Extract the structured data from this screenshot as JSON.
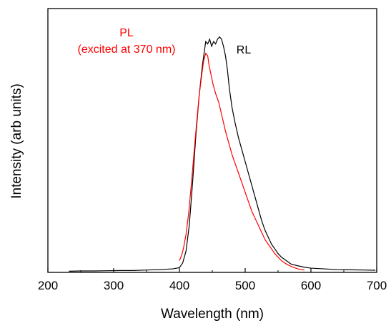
{
  "chart_data": {
    "type": "line",
    "title": "",
    "xlabel": "Wavelength (nm)",
    "ylabel": "Intensity (arb units)",
    "xlim": [
      200,
      700
    ],
    "ylim": [
      0,
      1.12
    ],
    "xticks": [
      200,
      300,
      400,
      500,
      600,
      700
    ],
    "yticks_shown": false,
    "grid": false,
    "annotations": [
      {
        "text": "PL",
        "color": "#ff0000"
      },
      {
        "text": "(excited at 370 nm)",
        "color": "#ff0000"
      },
      {
        "text": "RL",
        "color": "#000000"
      }
    ],
    "series": [
      {
        "name": "RL",
        "color": "#000000",
        "x": [
          232,
          250,
          270,
          290,
          310,
          330,
          350,
          370,
          390,
          400,
          405,
          410,
          415,
          420,
          425,
          430,
          435,
          438,
          440,
          443,
          446,
          449,
          452,
          455,
          458,
          461,
          464,
          467,
          470,
          473,
          476,
          480,
          485,
          490,
          495,
          500,
          505,
          510,
          515,
          520,
          525,
          530,
          535,
          540,
          545,
          550,
          555,
          560,
          565,
          570,
          580,
          590,
          600,
          620,
          640,
          660,
          680,
          698
        ],
        "y": [
          0.005,
          0.006,
          0.006,
          0.007,
          0.008,
          0.008,
          0.01,
          0.012,
          0.015,
          0.02,
          0.04,
          0.09,
          0.2,
          0.38,
          0.58,
          0.75,
          0.88,
          0.94,
          0.98,
          0.97,
          0.99,
          0.96,
          0.98,
          0.97,
          0.99,
          1.0,
          0.99,
          0.96,
          0.92,
          0.86,
          0.78,
          0.7,
          0.63,
          0.57,
          0.52,
          0.47,
          0.42,
          0.37,
          0.32,
          0.27,
          0.22,
          0.18,
          0.15,
          0.12,
          0.1,
          0.08,
          0.065,
          0.055,
          0.045,
          0.035,
          0.028,
          0.022,
          0.018,
          0.015,
          0.012,
          0.011,
          0.01,
          0.009
        ]
      },
      {
        "name": "PL",
        "color": "#ff0000",
        "x": [
          400,
          403,
          406,
          410,
          414,
          418,
          422,
          426,
          430,
          434,
          437,
          440,
          443,
          445,
          448,
          451,
          455,
          460,
          465,
          470,
          475,
          480,
          485,
          490,
          495,
          500,
          505,
          510,
          515,
          520,
          525,
          530,
          535,
          540,
          545,
          550,
          555,
          560,
          565,
          570,
          575,
          580,
          585,
          590
        ],
        "y": [
          0.05,
          0.07,
          0.1,
          0.16,
          0.25,
          0.37,
          0.5,
          0.63,
          0.75,
          0.84,
          0.9,
          0.93,
          0.92,
          0.88,
          0.84,
          0.8,
          0.76,
          0.72,
          0.66,
          0.6,
          0.55,
          0.5,
          0.46,
          0.42,
          0.38,
          0.34,
          0.3,
          0.26,
          0.23,
          0.2,
          0.17,
          0.14,
          0.12,
          0.1,
          0.08,
          0.065,
          0.05,
          0.04,
          0.032,
          0.025,
          0.02,
          0.015,
          0.012,
          0.01
        ]
      }
    ]
  }
}
